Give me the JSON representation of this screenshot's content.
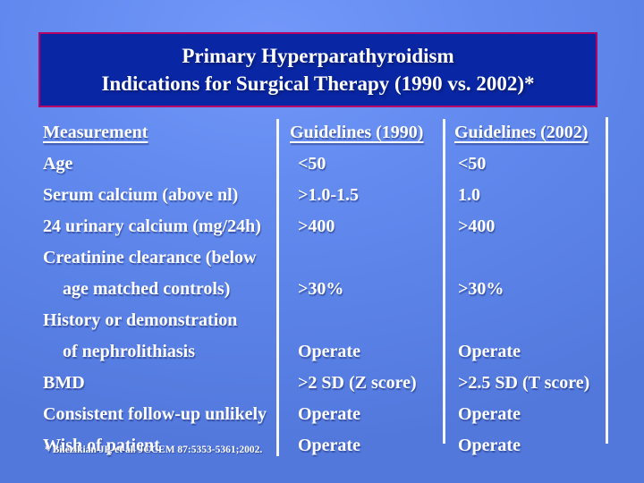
{
  "slide": {
    "title_line1": "Primary Hyperparathyroidism",
    "title_line2": "Indications for Surgical Therapy (1990 vs. 2002)*",
    "footnote": "* Bilezikian JP, et al. JCCEM 87:5353-5361;2002.",
    "colors": {
      "background_center": "#7398fa",
      "background_edge": "#5278dc",
      "title_box_fill": "#0927a4",
      "title_box_border": "#b50068",
      "text": "#ffffff",
      "column_rule": "#f5f6fc"
    }
  },
  "table": {
    "headers": [
      "Measurement",
      "Guidelines (1990)",
      "Guidelines (2002)"
    ],
    "rows": [
      {
        "measurement": "Age",
        "g1990": "<50",
        "g2002": "<50"
      },
      {
        "measurement": "Serum calcium (above nl)",
        "g1990": ">1.0-1.5",
        "g2002": "1.0"
      },
      {
        "measurement": "24 urinary calcium (mg/24h)",
        "g1990": ">400",
        "g2002": ">400"
      },
      {
        "measurement": "Creatinine clearance (below",
        "g1990": "",
        "g2002": ""
      },
      {
        "measurement": "age matched controls)",
        "g1990": ">30%",
        "g2002": ">30%"
      },
      {
        "measurement": "History or demonstration",
        "g1990": "",
        "g2002": ""
      },
      {
        "measurement": "of nephrolithiasis",
        "g1990": "Operate",
        "g2002": "Operate"
      },
      {
        "measurement": "BMD",
        "g1990": ">2 SD (Z score)",
        "g2002": ">2.5 SD (T score)"
      },
      {
        "measurement": "Consistent follow-up unlikely",
        "g1990": "Operate",
        "g2002": "Operate"
      },
      {
        "measurement": "Wish of patient",
        "g1990": "Operate",
        "g2002": "Operate"
      }
    ]
  }
}
